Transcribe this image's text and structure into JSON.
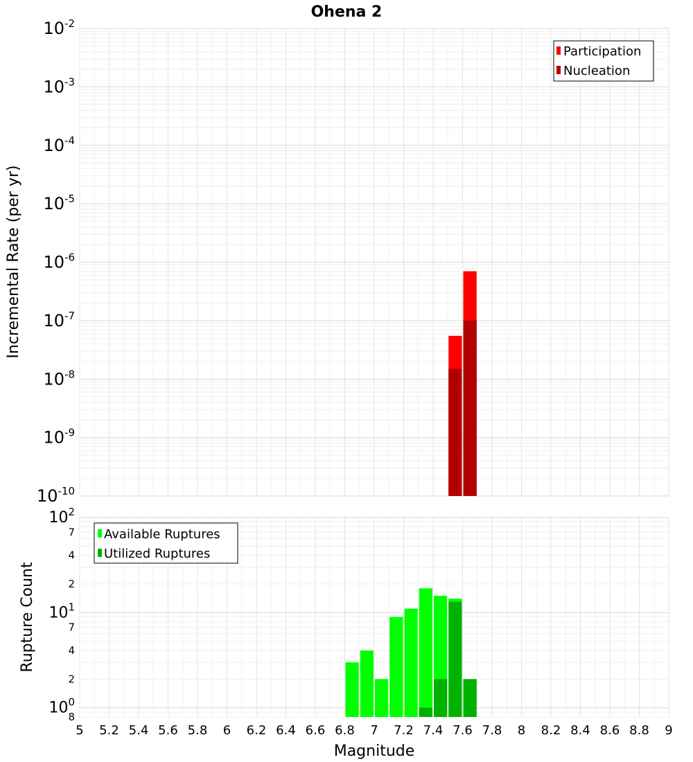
{
  "title": "Ohena 2",
  "chart_data": [
    {
      "type": "bar",
      "panel": "top",
      "xlabel": "Magnitude",
      "ylabel": "Incremental Rate (per yr)",
      "xlim": [
        5,
        9
      ],
      "ylim": [
        1e-10,
        0.01
      ],
      "yscale": "log",
      "grid": true,
      "legend_position": "top-right",
      "bin_width": 0.1,
      "x_ticks": [
        "5",
        "5.2",
        "5.4",
        "5.6",
        "5.8",
        "6",
        "6.2",
        "6.4",
        "6.6",
        "6.8",
        "7",
        "7.2",
        "7.4",
        "7.6",
        "7.8",
        "8",
        "8.2",
        "8.4",
        "8.6",
        "8.8",
        "9"
      ],
      "y_ticks": [
        {
          "base": "10",
          "exp": "-2"
        },
        {
          "base": "10",
          "exp": "-3"
        },
        {
          "base": "10",
          "exp": "-4"
        },
        {
          "base": "10",
          "exp": "-5"
        },
        {
          "base": "10",
          "exp": "-6"
        },
        {
          "base": "10",
          "exp": "-7"
        },
        {
          "base": "10",
          "exp": "-8"
        },
        {
          "base": "10",
          "exp": "-9"
        },
        {
          "base": "10",
          "exp": "-10"
        }
      ],
      "series": [
        {
          "name": "Participation",
          "color": "#ff0000",
          "x": [
            7.55,
            7.65
          ],
          "values": [
            5.5e-08,
            7e-07
          ]
        },
        {
          "name": "Nucleation",
          "color": "#b20000",
          "x": [
            7.55,
            7.65
          ],
          "values": [
            1.5e-08,
            1e-07
          ]
        }
      ]
    },
    {
      "type": "bar",
      "panel": "bottom",
      "xlabel": "Magnitude",
      "ylabel": "Rupture Count",
      "xlim": [
        5,
        9
      ],
      "ylim": [
        0.8,
        100
      ],
      "yscale": "log",
      "grid": true,
      "legend_position": "top-left",
      "bin_width": 0.1,
      "x_ticks": [
        "5",
        "5.2",
        "5.4",
        "5.6",
        "5.8",
        "6",
        "6.2",
        "6.4",
        "6.6",
        "6.8",
        "7",
        "7.2",
        "7.4",
        "7.6",
        "7.8",
        "8",
        "8.2",
        "8.4",
        "8.6",
        "8.8",
        "9"
      ],
      "y_ticks": [
        {
          "base": "10",
          "exp": "2",
          "value": 100
        },
        {
          "base": "7",
          "exp": "",
          "value": 70
        },
        {
          "base": "4",
          "exp": "",
          "value": 40
        },
        {
          "base": "2",
          "exp": "",
          "value": 20
        },
        {
          "base": "10",
          "exp": "1",
          "value": 10
        },
        {
          "base": "7",
          "exp": "",
          "value": 7
        },
        {
          "base": "4",
          "exp": "",
          "value": 4
        },
        {
          "base": "2",
          "exp": "",
          "value": 2
        },
        {
          "base": "10",
          "exp": "0",
          "value": 1
        },
        {
          "base": "8",
          "exp": "",
          "value": 0.8
        }
      ],
      "series": [
        {
          "name": "Available Ruptures",
          "color": "#00ff00",
          "x": [
            6.85,
            6.95,
            7.05,
            7.15,
            7.25,
            7.35,
            7.45,
            7.55,
            7.65
          ],
          "values": [
            3,
            4,
            2,
            9,
            11,
            18,
            15,
            14,
            2
          ]
        },
        {
          "name": "Utilized Ruptures",
          "color": "#00b200",
          "x": [
            7.35,
            7.45,
            7.55,
            7.65
          ],
          "values": [
            1,
            2,
            13,
            2
          ]
        }
      ]
    }
  ]
}
